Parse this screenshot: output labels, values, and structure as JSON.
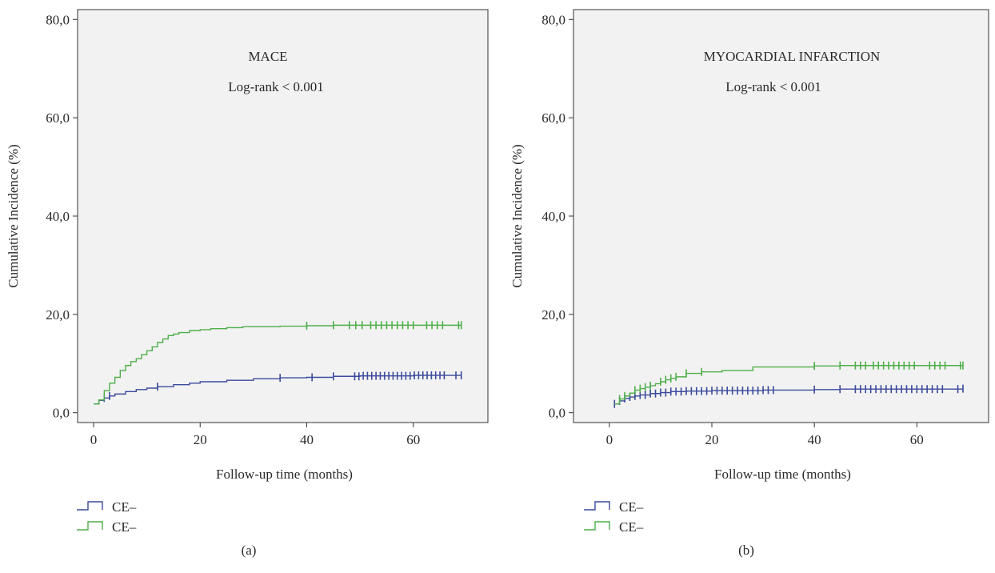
{
  "chart_data": [
    {
      "type": "line",
      "title": "MACE",
      "annotation": "Log-rank < 0.001",
      "xlabel": "Follow-up time (months)",
      "ylabel": "Cumulative Incidence (%)",
      "xlim": [
        -3,
        74
      ],
      "ylim": [
        -2,
        82
      ],
      "xticks": [
        0,
        20,
        40,
        60
      ],
      "xtick_labels": [
        "0",
        "20",
        "40",
        "60"
      ],
      "yticks": [
        0,
        20,
        40,
        60,
        80
      ],
      "ytick_labels": [
        "0,0",
        "20,0",
        "40,0",
        "60,0",
        "80,0"
      ],
      "panel_label": "(a)",
      "grid": false,
      "legend_position": "bottom-left",
      "series": [
        {
          "name": "CE–",
          "color": "#3b4a9c",
          "x": [
            0,
            1,
            2,
            3,
            4,
            6,
            8,
            10,
            12,
            15,
            18,
            20,
            25,
            30,
            35,
            40,
            45,
            50,
            60,
            69
          ],
          "y": [
            1.8,
            2.5,
            3.0,
            3.4,
            3.8,
            4.3,
            4.7,
            5.0,
            5.3,
            5.7,
            6.0,
            6.3,
            6.6,
            6.9,
            7.1,
            7.2,
            7.4,
            7.5,
            7.6,
            7.6
          ],
          "censor_x": [
            2,
            3,
            12,
            35,
            41,
            45,
            49,
            49.8,
            50.6,
            51.4,
            52.2,
            53,
            53.8,
            54.6,
            55.4,
            56.2,
            57,
            57.8,
            58.6,
            59.4,
            60.2,
            61,
            61.8,
            62.6,
            63.4,
            64.2,
            65,
            65.8,
            68,
            69
          ]
        },
        {
          "name": "CE–",
          "color": "#4fae4a",
          "x": [
            0,
            1,
            2,
            3,
            4,
            5,
            6,
            7,
            8,
            9,
            10,
            11,
            12,
            13,
            14,
            15,
            16,
            18,
            20,
            22,
            25,
            28,
            35,
            40,
            45,
            69
          ],
          "y": [
            1.8,
            2.6,
            4.5,
            6.0,
            7.2,
            8.6,
            9.6,
            10.4,
            11.0,
            11.8,
            12.6,
            13.4,
            14.3,
            15.0,
            15.7,
            16.0,
            16.3,
            16.7,
            16.9,
            17.1,
            17.3,
            17.5,
            17.6,
            17.7,
            17.8,
            17.8
          ],
          "censor_x": [
            40,
            45,
            48,
            49.2,
            50.4,
            52,
            53,
            54,
            55,
            56,
            57,
            58,
            59,
            60,
            62.5,
            63.5,
            64.5,
            65.5,
            68.5,
            69
          ]
        }
      ]
    },
    {
      "type": "line",
      "title": "MYOCARDIAL INFARCTION",
      "annotation": "Log-rank < 0.001",
      "xlabel": "Follow-up time (months)",
      "ylabel": "Cumulative Incidence (%)",
      "xlim": [
        -7,
        74
      ],
      "ylim": [
        -2,
        82
      ],
      "xticks": [
        0,
        20,
        40,
        60
      ],
      "xtick_labels": [
        "0",
        "20",
        "40",
        "60"
      ],
      "yticks": [
        0,
        20,
        40,
        60,
        80
      ],
      "ytick_labels": [
        "0,0",
        "20,0",
        "40,0",
        "60,0",
        "80,0"
      ],
      "panel_label": "(b)",
      "grid": false,
      "legend_position": "bottom-left",
      "series": [
        {
          "name": "CE–",
          "color": "#3b4a9c",
          "x": [
            1,
            2,
            3,
            4,
            5,
            6,
            8,
            10,
            12,
            15,
            20,
            30,
            40,
            45,
            69
          ],
          "y": [
            1.8,
            2.4,
            2.9,
            3.2,
            3.4,
            3.6,
            3.9,
            4.1,
            4.3,
            4.4,
            4.5,
            4.6,
            4.7,
            4.8,
            4.9
          ],
          "censor_x": [
            1,
            2,
            3,
            4,
            5,
            6,
            7,
            8,
            9,
            10,
            11,
            12,
            13,
            14,
            15,
            16,
            17,
            18,
            19,
            20,
            21,
            22,
            23,
            24,
            25,
            26,
            27,
            28,
            29,
            30,
            31,
            32,
            40,
            45,
            48,
            49,
            50,
            51,
            52,
            53,
            54,
            55,
            56,
            57,
            58,
            59,
            60,
            61,
            62,
            63,
            64,
            65,
            68,
            69
          ]
        },
        {
          "name": "CE–",
          "color": "#4fae4a",
          "x": [
            1,
            2,
            3,
            4,
            5,
            6,
            7,
            8,
            9,
            10,
            11,
            12,
            13,
            15,
            18,
            22,
            28,
            40,
            45,
            69
          ],
          "y": [
            1.8,
            2.8,
            3.4,
            4.0,
            4.6,
            4.9,
            5.2,
            5.5,
            5.9,
            6.3,
            6.7,
            7.0,
            7.3,
            8.0,
            8.3,
            8.6,
            9.3,
            9.5,
            9.6,
            9.6
          ],
          "censor_x": [
            2,
            3,
            5,
            6,
            7,
            8,
            10,
            11,
            12,
            13,
            15,
            18,
            40,
            45,
            48,
            49,
            50,
            51.5,
            52.5,
            53.5,
            54.5,
            55.5,
            56.5,
            57.5,
            58.5,
            59.5,
            62.5,
            63.5,
            64.5,
            65.5,
            68.5,
            69
          ]
        }
      ]
    }
  ]
}
